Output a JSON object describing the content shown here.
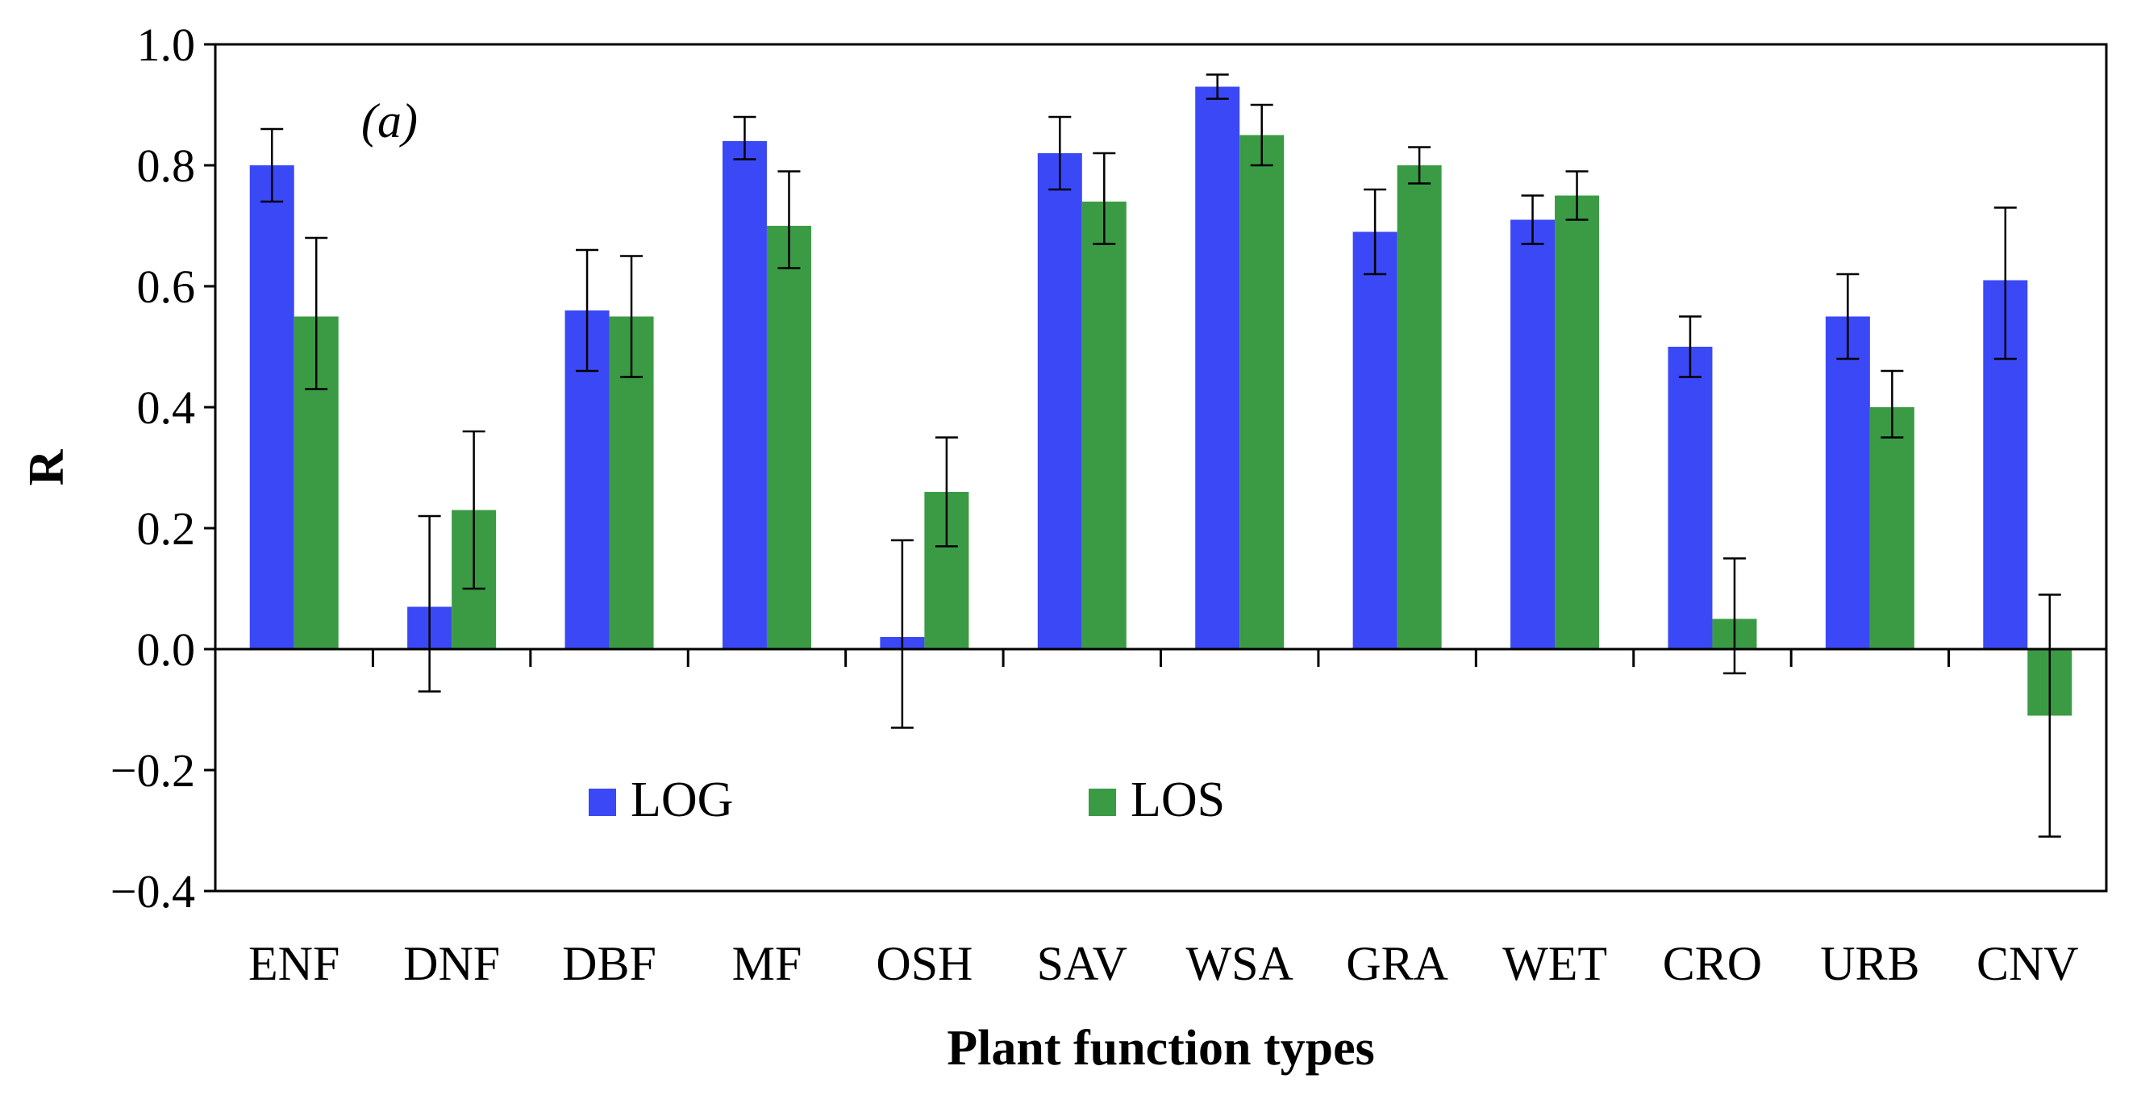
{
  "chart_data": {
    "type": "bar",
    "annotation": "(a)",
    "xlabel": "Plant function types",
    "ylabel": "R",
    "ylim": [
      -0.4,
      1.0
    ],
    "yticks": [
      1.0,
      0.8,
      0.6,
      0.4,
      0.2,
      0.0,
      -0.2,
      -0.4
    ],
    "ytick_labels": [
      "1.0",
      "0.8",
      "0.6",
      "0.4",
      "0.2",
      "0.0",
      "−0.2",
      "−0.4"
    ],
    "categories": [
      "ENF",
      "DNF",
      "DBF",
      "MF",
      "OSH",
      "SAV",
      "WSA",
      "GRA",
      "WET",
      "CRO",
      "URB",
      "CNV"
    ],
    "series": [
      {
        "name": "LOG",
        "color": "#3b48f5",
        "values": [
          0.8,
          0.07,
          0.56,
          0.84,
          0.02,
          0.82,
          0.93,
          0.69,
          0.71,
          0.5,
          0.55,
          0.61
        ],
        "err_low": [
          0.74,
          -0.07,
          0.46,
          0.81,
          -0.13,
          0.76,
          0.91,
          0.62,
          0.67,
          0.45,
          0.48,
          0.48
        ],
        "err_high": [
          0.86,
          0.22,
          0.66,
          0.88,
          0.18,
          0.88,
          0.95,
          0.76,
          0.75,
          0.55,
          0.62,
          0.73
        ]
      },
      {
        "name": "LOS",
        "color": "#3b9b45",
        "values": [
          0.55,
          0.23,
          0.55,
          0.7,
          0.26,
          0.74,
          0.85,
          0.8,
          0.75,
          0.05,
          0.4,
          -0.11
        ],
        "err_low": [
          0.43,
          0.1,
          0.45,
          0.63,
          0.17,
          0.67,
          0.8,
          0.77,
          0.71,
          -0.04,
          0.35,
          -0.31
        ],
        "err_high": [
          0.68,
          0.36,
          0.65,
          0.79,
          0.35,
          0.82,
          0.9,
          0.83,
          0.79,
          0.15,
          0.46,
          0.09
        ]
      }
    ],
    "grid": false,
    "legend": {
      "placement": "bottom-left inside"
    }
  }
}
